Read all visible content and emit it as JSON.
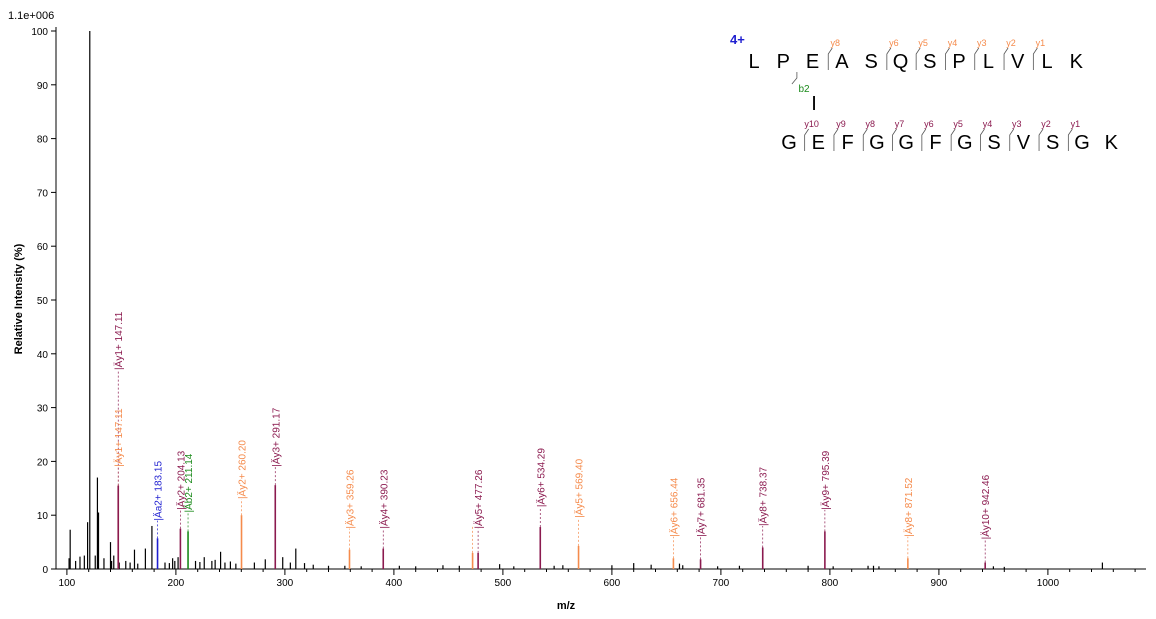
{
  "chart_data": {
    "type": "bar",
    "scale_label": "1.1e+006",
    "xlabel": "m/z",
    "ylabel": "Relative Intensity (%)",
    "xlim": [
      90,
      1090
    ],
    "ylim": [
      0,
      100
    ],
    "x_ticks": [
      100,
      200,
      300,
      400,
      500,
      600,
      700,
      800,
      900,
      1000
    ],
    "y_ticks": [
      0,
      10,
      20,
      30,
      40,
      50,
      60,
      70,
      80,
      90,
      100
    ],
    "colors": {
      "noise": "#000000",
      "y_ion": "#f58b4c",
      "y_ion_crosslinked": "#8b1a4f",
      "a_ion": "#1f1fd0",
      "b_ion": "#1a8a1a",
      "charge": "#1f1fd0"
    },
    "peaks": [
      [
        102,
        2
      ],
      [
        103,
        7.3
      ],
      [
        108,
        1.5
      ],
      [
        112,
        2.3
      ],
      [
        116,
        2.5
      ],
      [
        119,
        8.7
      ],
      [
        121,
        100
      ],
      [
        126,
        2.5
      ],
      [
        128,
        17
      ],
      [
        129,
        10.5
      ],
      [
        134,
        2
      ],
      [
        140,
        5
      ],
      [
        141,
        1.5
      ],
      [
        143,
        2.5
      ],
      [
        148,
        1.2
      ],
      [
        154,
        1.5
      ],
      [
        158,
        1.2
      ],
      [
        162,
        3.6
      ],
      [
        165,
        1
      ],
      [
        172,
        3.8
      ],
      [
        178,
        8
      ],
      [
        190,
        1.2
      ],
      [
        194,
        1.1
      ],
      [
        197,
        2
      ],
      [
        199,
        1.5
      ],
      [
        202,
        2.2
      ],
      [
        218,
        1.5
      ],
      [
        222,
        1.3
      ],
      [
        226,
        2.2
      ],
      [
        233,
        1.5
      ],
      [
        236,
        1.7
      ],
      [
        241,
        3.2
      ],
      [
        245,
        1.2
      ],
      [
        250,
        1.4
      ],
      [
        255,
        1
      ],
      [
        272,
        1.2
      ],
      [
        282,
        1.8
      ],
      [
        298,
        2.2
      ],
      [
        305,
        1.2
      ],
      [
        310,
        3.8
      ],
      [
        318,
        1.1
      ],
      [
        326,
        0.8
      ],
      [
        340,
        0.6
      ],
      [
        355,
        0.6
      ],
      [
        370,
        0.5
      ],
      [
        405,
        0.6
      ],
      [
        420,
        0.5
      ],
      [
        445,
        0.7
      ],
      [
        460,
        0.6
      ],
      [
        497,
        0.9
      ],
      [
        510,
        0.5
      ],
      [
        547,
        0.6
      ],
      [
        555,
        0.7
      ],
      [
        600,
        0.7
      ],
      [
        620,
        1.1
      ],
      [
        636,
        0.8
      ],
      [
        662,
        1
      ],
      [
        665,
        0.7
      ],
      [
        697,
        0.5
      ],
      [
        717,
        0.6
      ],
      [
        780,
        0.6
      ],
      [
        803,
        0.5
      ],
      [
        835,
        0.6
      ],
      [
        840,
        0.6
      ],
      [
        845,
        0.5
      ],
      [
        950,
        0.5
      ],
      [
        960,
        0.4
      ],
      [
        1050,
        1.2
      ]
    ],
    "annotated_peaks": [
      {
        "mz": 147.11,
        "intensity": 15.5,
        "kind": "y_ion",
        "label": "|Äy1+ 147.11",
        "label_top": 19
      },
      {
        "mz": 147.11,
        "intensity": 15.5,
        "kind": "y_ion_crosslinked",
        "label": "|Äy1+ 147.11",
        "label_top": 37
      },
      {
        "mz": 183.15,
        "intensity": 5.7,
        "kind": "a_ion",
        "label": "|Äa2+ 183.15",
        "label_top": 9
      },
      {
        "mz": 204.13,
        "intensity": 7.5,
        "kind": "y_ion_crosslinked",
        "label": "|Äy2+ 204.13",
        "label_top": 11
      },
      {
        "mz": 211.14,
        "intensity": 7.0,
        "kind": "b_ion",
        "label": "|Äb2+ 211.14",
        "label_top": 10.5
      },
      {
        "mz": 260.2,
        "intensity": 10,
        "kind": "y_ion",
        "label": "|Äy2+ 260.20",
        "label_top": 13
      },
      {
        "mz": 291.17,
        "intensity": 15.6,
        "kind": "y_ion_crosslinked",
        "label": "|Äy3+ 291.17",
        "label_top": 19
      },
      {
        "mz": 359.26,
        "intensity": 3.6,
        "kind": "y_ion",
        "label": "|Äy3+ 359.26",
        "label_top": 7.5
      },
      {
        "mz": 390.23,
        "intensity": 3.8,
        "kind": "y_ion_crosslinked",
        "label": "|Äy4+ 390.23",
        "label_top": 7.5
      },
      {
        "mz": 472.2,
        "intensity": 3.0,
        "kind": "y_ion",
        "label": "",
        "label_top": 8
      },
      {
        "mz": 477.26,
        "intensity": 3.0,
        "kind": "y_ion_crosslinked",
        "label": "|Äy5+ 477.26",
        "label_top": 7.5
      },
      {
        "mz": 534.29,
        "intensity": 7.8,
        "kind": "y_ion_crosslinked",
        "label": "|Äy6+ 534.29",
        "label_top": 11.5
      },
      {
        "mz": 569.4,
        "intensity": 4.3,
        "kind": "y_ion",
        "label": "|Äy5+ 569.40",
        "label_top": 9.5
      },
      {
        "mz": 656.44,
        "intensity": 2.0,
        "kind": "y_ion",
        "label": "|Äy6+ 656.44",
        "label_top": 6
      },
      {
        "mz": 681.35,
        "intensity": 1.8,
        "kind": "y_ion_crosslinked",
        "label": "|Äy7+ 681.35",
        "label_top": 6
      },
      {
        "mz": 738.37,
        "intensity": 4.0,
        "kind": "y_ion_crosslinked",
        "label": "|Äy8+ 738.37",
        "label_top": 8
      },
      {
        "mz": 795.39,
        "intensity": 7.0,
        "kind": "y_ion_crosslinked",
        "label": "|Äy9+ 795.39",
        "label_top": 11
      },
      {
        "mz": 871.52,
        "intensity": 2.0,
        "kind": "y_ion",
        "label": "|Äy8+ 871.52",
        "label_top": 6
      },
      {
        "mz": 942.46,
        "intensity": 1.2,
        "kind": "y_ion_crosslinked",
        "label": "|Äy10+ 942.46",
        "label_top": 5.5
      }
    ],
    "sequence_annotation": {
      "charge": "4+",
      "peptide_1": [
        "L",
        "P",
        "E",
        "A",
        "S",
        "Q",
        "S",
        "P",
        "L",
        "V",
        "L",
        "K"
      ],
      "peptide_1_y_labels": [
        "",
        "",
        "",
        "y8",
        "",
        "y6",
        "y5",
        "y4",
        "y3",
        "y2",
        "y1",
        ""
      ],
      "peptide_1_y_marks": [
        false,
        false,
        false,
        true,
        false,
        true,
        true,
        true,
        true,
        true,
        true,
        false
      ],
      "peptide_1_b_label": "b2",
      "peptide_1_b_mark": 1,
      "crosslink_symbol": "I",
      "peptide_2": [
        "G",
        "E",
        "F",
        "G",
        "G",
        "F",
        "G",
        "S",
        "V",
        "S",
        "G",
        "K"
      ],
      "peptide_2_y_labels": [
        "",
        "y10",
        "y9",
        "y8",
        "y7",
        "y6",
        "y5",
        "y4",
        "y3",
        "y2",
        "y1",
        ""
      ],
      "peptide_2_y_marks": [
        false,
        true,
        true,
        true,
        true,
        true,
        true,
        true,
        true,
        true,
        true,
        false
      ]
    }
  }
}
